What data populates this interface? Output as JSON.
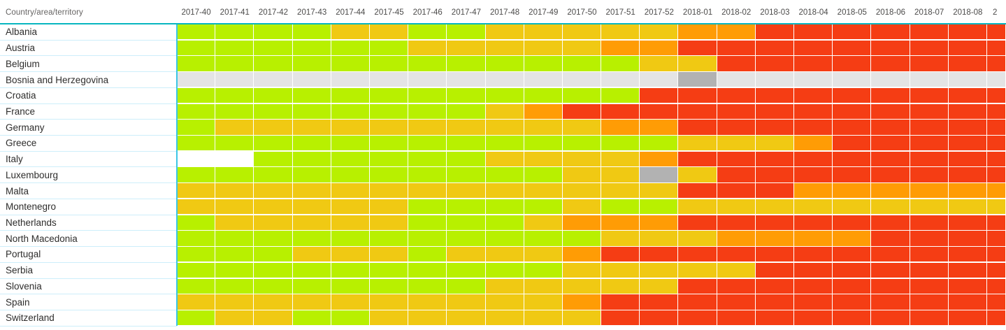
{
  "ui": {
    "header_underline_color": "#09b6c0",
    "grid_left_line_color": "#3cc6e6",
    "row_separator_color": "#cdeefa",
    "background": "#ffffff"
  },
  "chart_data": {
    "type": "heatmap",
    "title": "",
    "corner_label": "Country/area/territory",
    "legend_position": "none",
    "grid": true,
    "x_labels": [
      "2017-40",
      "2017-41",
      "2017-42",
      "2017-43",
      "2017-44",
      "2017-45",
      "2017-46",
      "2017-47",
      "2017-48",
      "2017-49",
      "2017-50",
      "2017-51",
      "2017-52",
      "2018-01",
      "2018-02",
      "2018-03",
      "2018-04",
      "2018-05",
      "2018-06",
      "2018-07",
      "2018-08",
      "2"
    ],
    "y_labels": [
      "Albania",
      "Austria",
      "Belgium",
      "Bosnia and Herzegovina",
      "Croatia",
      "France",
      "Germany",
      "Greece",
      "Italy",
      "Luxembourg",
      "Malta",
      "Montenegro",
      "Netherlands",
      "North Macedonia",
      "Portugal",
      "Serbia",
      "Slovenia",
      "Spain",
      "Switzerland"
    ],
    "cell_colors": {
      "G": "#b8f000",
      "Y": "#f0c913",
      "O": "#ff9c05",
      "R": "#f53d14",
      "N": "#e4e4e4",
      "D": "#b2b2b2",
      "W": "#ffffff"
    },
    "cell_color_meaning": {
      "G": "green",
      "Y": "yellow",
      "O": "orange",
      "R": "red",
      "N": "grey-light",
      "D": "grey-dark",
      "W": "blank"
    },
    "matrix": [
      [
        "G",
        "G",
        "G",
        "G",
        "Y",
        "Y",
        "G",
        "G",
        "Y",
        "Y",
        "Y",
        "Y",
        "Y",
        "O",
        "O",
        "R",
        "R",
        "R",
        "R",
        "R",
        "R",
        "R"
      ],
      [
        "G",
        "G",
        "G",
        "G",
        "G",
        "G",
        "Y",
        "Y",
        "Y",
        "Y",
        "Y",
        "O",
        "O",
        "R",
        "R",
        "R",
        "R",
        "R",
        "R",
        "R",
        "R",
        "R"
      ],
      [
        "G",
        "G",
        "G",
        "G",
        "G",
        "G",
        "G",
        "G",
        "G",
        "G",
        "G",
        "G",
        "Y",
        "Y",
        "R",
        "R",
        "R",
        "R",
        "R",
        "R",
        "R",
        "R"
      ],
      [
        "N",
        "N",
        "N",
        "N",
        "N",
        "N",
        "N",
        "N",
        "N",
        "N",
        "N",
        "N",
        "N",
        "D",
        "N",
        "N",
        "N",
        "N",
        "N",
        "N",
        "N",
        "N"
      ],
      [
        "G",
        "G",
        "G",
        "G",
        "G",
        "G",
        "G",
        "G",
        "G",
        "G",
        "G",
        "G",
        "R",
        "R",
        "R",
        "R",
        "R",
        "R",
        "R",
        "R",
        "R",
        "R"
      ],
      [
        "G",
        "G",
        "G",
        "G",
        "G",
        "G",
        "G",
        "G",
        "Y",
        "O",
        "R",
        "R",
        "R",
        "R",
        "R",
        "R",
        "R",
        "R",
        "R",
        "R",
        "R",
        "R"
      ],
      [
        "G",
        "Y",
        "Y",
        "Y",
        "Y",
        "Y",
        "Y",
        "Y",
        "Y",
        "Y",
        "Y",
        "O",
        "O",
        "R",
        "R",
        "R",
        "R",
        "R",
        "R",
        "R",
        "R",
        "R"
      ],
      [
        "G",
        "G",
        "G",
        "G",
        "G",
        "G",
        "G",
        "G",
        "G",
        "G",
        "G",
        "G",
        "G",
        "Y",
        "Y",
        "Y",
        "O",
        "R",
        "R",
        "R",
        "R",
        "R"
      ],
      [
        "W",
        "W",
        "G",
        "G",
        "G",
        "G",
        "G",
        "G",
        "Y",
        "Y",
        "Y",
        "Y",
        "O",
        "R",
        "R",
        "R",
        "R",
        "R",
        "R",
        "R",
        "R",
        "R"
      ],
      [
        "G",
        "G",
        "G",
        "G",
        "G",
        "G",
        "G",
        "G",
        "G",
        "G",
        "Y",
        "Y",
        "D",
        "Y",
        "R",
        "R",
        "R",
        "R",
        "R",
        "R",
        "R",
        "R"
      ],
      [
        "Y",
        "Y",
        "Y",
        "Y",
        "Y",
        "Y",
        "Y",
        "Y",
        "Y",
        "Y",
        "Y",
        "Y",
        "Y",
        "R",
        "R",
        "R",
        "O",
        "O",
        "O",
        "O",
        "O",
        "O"
      ],
      [
        "Y",
        "Y",
        "Y",
        "Y",
        "Y",
        "Y",
        "G",
        "G",
        "G",
        "G",
        "Y",
        "G",
        "G",
        "Y",
        "Y",
        "Y",
        "Y",
        "Y",
        "Y",
        "Y",
        "Y",
        "Y"
      ],
      [
        "G",
        "Y",
        "Y",
        "Y",
        "Y",
        "Y",
        "G",
        "G",
        "G",
        "Y",
        "O",
        "O",
        "O",
        "R",
        "R",
        "R",
        "R",
        "R",
        "R",
        "R",
        "R",
        "R"
      ],
      [
        "G",
        "G",
        "G",
        "G",
        "G",
        "G",
        "G",
        "G",
        "G",
        "G",
        "G",
        "Y",
        "Y",
        "Y",
        "O",
        "O",
        "O",
        "O",
        "R",
        "R",
        "R",
        "R"
      ],
      [
        "G",
        "G",
        "G",
        "Y",
        "Y",
        "Y",
        "G",
        "Y",
        "Y",
        "Y",
        "O",
        "R",
        "R",
        "R",
        "R",
        "R",
        "R",
        "R",
        "R",
        "R",
        "R",
        "R"
      ],
      [
        "G",
        "G",
        "G",
        "G",
        "G",
        "G",
        "G",
        "G",
        "G",
        "G",
        "Y",
        "Y",
        "Y",
        "Y",
        "Y",
        "R",
        "R",
        "R",
        "R",
        "R",
        "R",
        "R"
      ],
      [
        "G",
        "G",
        "G",
        "G",
        "G",
        "G",
        "G",
        "G",
        "Y",
        "Y",
        "Y",
        "Y",
        "Y",
        "R",
        "R",
        "R",
        "R",
        "R",
        "R",
        "R",
        "R",
        "R"
      ],
      [
        "Y",
        "Y",
        "Y",
        "Y",
        "Y",
        "Y",
        "Y",
        "Y",
        "Y",
        "Y",
        "O",
        "R",
        "R",
        "R",
        "R",
        "R",
        "R",
        "R",
        "R",
        "R",
        "R",
        "R"
      ],
      [
        "G",
        "Y",
        "Y",
        "G",
        "G",
        "Y",
        "Y",
        "Y",
        "Y",
        "Y",
        "Y",
        "R",
        "R",
        "R",
        "R",
        "R",
        "R",
        "R",
        "R",
        "R",
        "R",
        "R"
      ]
    ]
  }
}
